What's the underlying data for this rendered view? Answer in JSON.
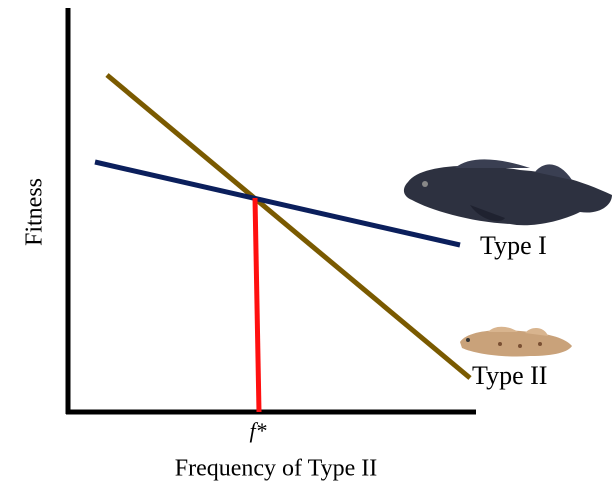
{
  "axes": {
    "y_label": "Fitness",
    "x_label": "Frequency of Type II"
  },
  "equilibrium_label": "f*",
  "lines": [
    {
      "label": "Type I"
    },
    {
      "label": "Type II"
    }
  ]
}
